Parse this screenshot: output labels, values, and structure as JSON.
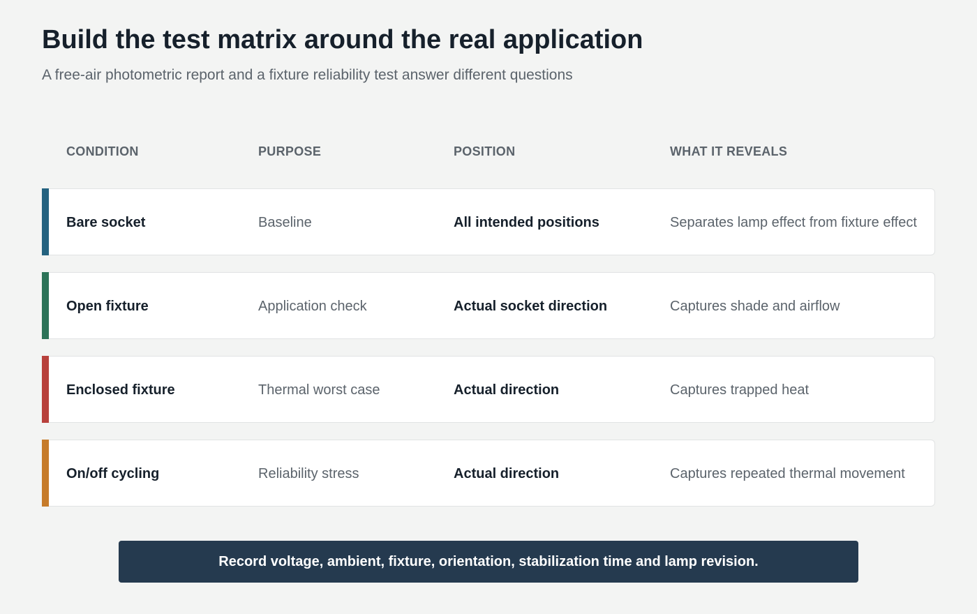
{
  "header": {
    "title": "Build the test matrix around the real application",
    "subtitle": "A free-air photometric report and a fixture reliability test answer different questions"
  },
  "table": {
    "columns": [
      "CONDITION",
      "PURPOSE",
      "POSITION",
      "WHAT IT REVEALS"
    ],
    "rows": [
      [
        "Bare socket",
        "Baseline",
        "All intended positions",
        "Separates lamp effect from fixture effect"
      ],
      [
        "Open fixture",
        "Application check",
        "Actual socket direction",
        "Captures shade and airflow"
      ],
      [
        "Enclosed fixture",
        "Thermal worst case",
        "Actual direction",
        "Captures trapped heat"
      ],
      [
        "On/off cycling",
        "Reliability stress",
        "Actual direction",
        "Captures repeated thermal movement"
      ]
    ],
    "row_colors": [
      "#24627f",
      "#2c7358",
      "#b8413c",
      "#c67b2a"
    ]
  },
  "footer": {
    "note": "Record voltage, ambient, fixture, orientation, stabilization time and lamp revision."
  }
}
